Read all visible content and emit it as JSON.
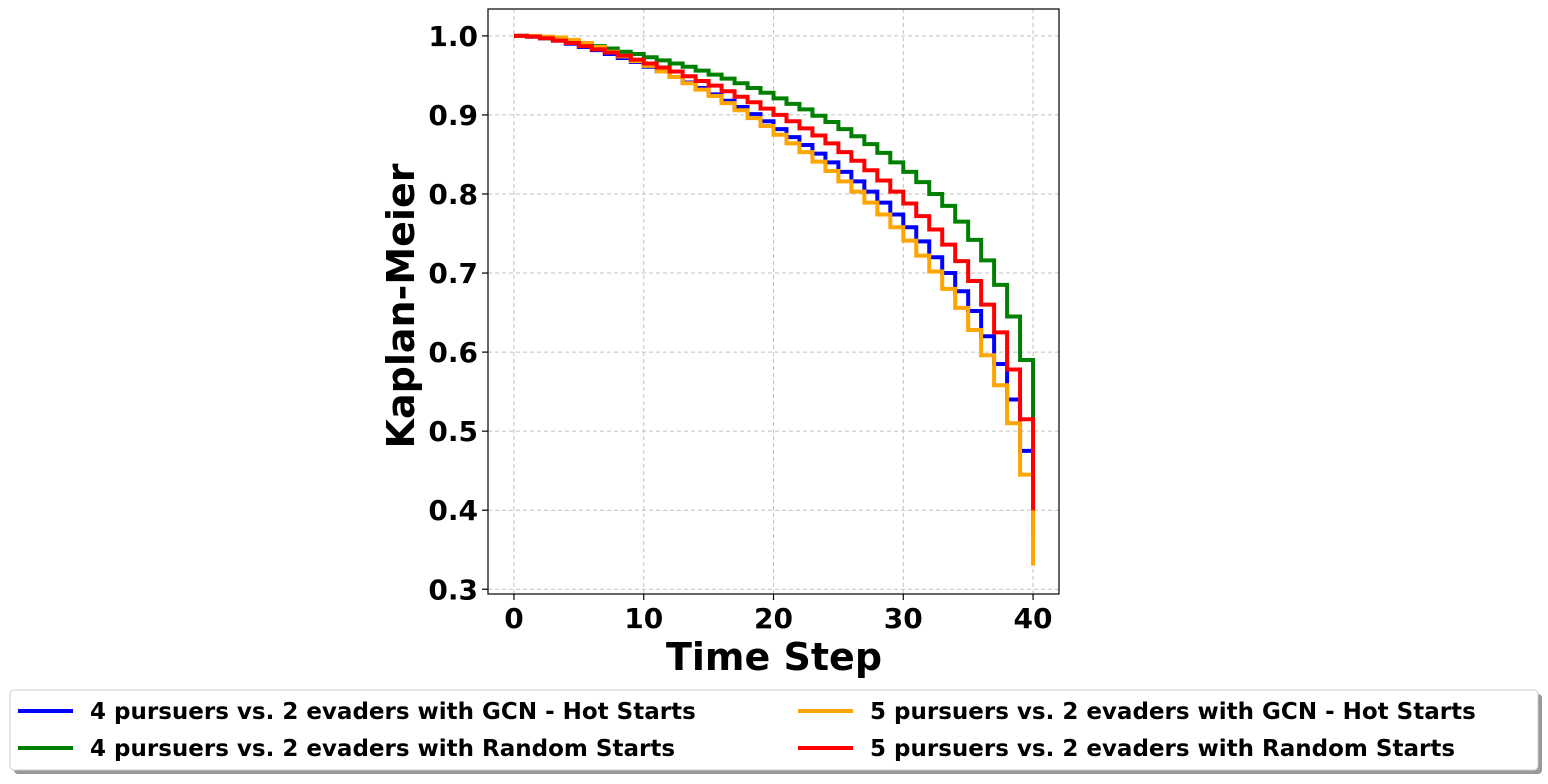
{
  "chart_data": {
    "type": "step",
    "xlabel": "Time Step",
    "ylabel": "Kaplan-Meier",
    "x": [
      0,
      1,
      2,
      3,
      4,
      5,
      6,
      7,
      8,
      9,
      10,
      11,
      12,
      13,
      14,
      15,
      16,
      17,
      18,
      19,
      20,
      21,
      22,
      23,
      24,
      25,
      26,
      27,
      28,
      29,
      30,
      31,
      32,
      33,
      34,
      35,
      36,
      37,
      38,
      39,
      40
    ],
    "series": [
      {
        "name": "4 pursuers vs. 2 evaders with GCN - Hot Starts",
        "color": "#0000ff",
        "values": [
          1.0,
          0.999,
          0.997,
          0.994,
          0.99,
          0.986,
          0.982,
          0.977,
          0.972,
          0.967,
          0.961,
          0.955,
          0.948,
          0.941,
          0.934,
          0.926,
          0.918,
          0.91,
          0.901,
          0.892,
          0.882,
          0.872,
          0.862,
          0.851,
          0.84,
          0.828,
          0.816,
          0.803,
          0.789,
          0.774,
          0.758,
          0.74,
          0.72,
          0.7,
          0.677,
          0.652,
          0.62,
          0.585,
          0.54,
          0.475,
          0.37
        ]
      },
      {
        "name": "4 pursuers vs. 2 evaders with Random Starts",
        "color": "#008000",
        "values": [
          1.0,
          0.999,
          0.997,
          0.995,
          0.993,
          0.99,
          0.987,
          0.984,
          0.98,
          0.977,
          0.973,
          0.969,
          0.965,
          0.961,
          0.956,
          0.951,
          0.946,
          0.94,
          0.934,
          0.928,
          0.921,
          0.914,
          0.907,
          0.899,
          0.891,
          0.882,
          0.873,
          0.863,
          0.852,
          0.84,
          0.828,
          0.815,
          0.8,
          0.785,
          0.765,
          0.742,
          0.716,
          0.685,
          0.645,
          0.59,
          0.51
        ]
      },
      {
        "name": "5 pursuers vs. 2 evaders with GCN - Hot Starts",
        "color": "#ffa500",
        "values": [
          1.0,
          1.0,
          0.999,
          0.998,
          0.995,
          0.991,
          0.986,
          0.98,
          0.974,
          0.968,
          0.962,
          0.955,
          0.948,
          0.94,
          0.932,
          0.924,
          0.915,
          0.906,
          0.896,
          0.886,
          0.875,
          0.864,
          0.853,
          0.841,
          0.829,
          0.816,
          0.803,
          0.789,
          0.774,
          0.758,
          0.741,
          0.722,
          0.702,
          0.68,
          0.656,
          0.628,
          0.596,
          0.558,
          0.51,
          0.445,
          0.33
        ]
      },
      {
        "name": "5 pursuers vs. 2 evaders with Random Starts",
        "color": "#ff0000",
        "values": [
          1.0,
          0.999,
          0.997,
          0.994,
          0.991,
          0.987,
          0.983,
          0.979,
          0.975,
          0.97,
          0.965,
          0.96,
          0.955,
          0.949,
          0.943,
          0.937,
          0.93,
          0.923,
          0.916,
          0.908,
          0.9,
          0.892,
          0.883,
          0.874,
          0.864,
          0.853,
          0.842,
          0.83,
          0.817,
          0.803,
          0.788,
          0.772,
          0.755,
          0.736,
          0.715,
          0.69,
          0.66,
          0.625,
          0.578,
          0.515,
          0.4
        ]
      }
    ],
    "xlim": [
      -2,
      42
    ],
    "ylim": [
      0.294,
      1.034
    ],
    "xticks": [
      0,
      10,
      20,
      30,
      40
    ],
    "yticks": [
      0.3,
      0.4,
      0.5,
      0.6,
      0.7,
      0.8,
      0.9,
      {
        "value": 1.0,
        "label": "1.0"
      }
    ],
    "grid": true,
    "legend": "bottom"
  }
}
